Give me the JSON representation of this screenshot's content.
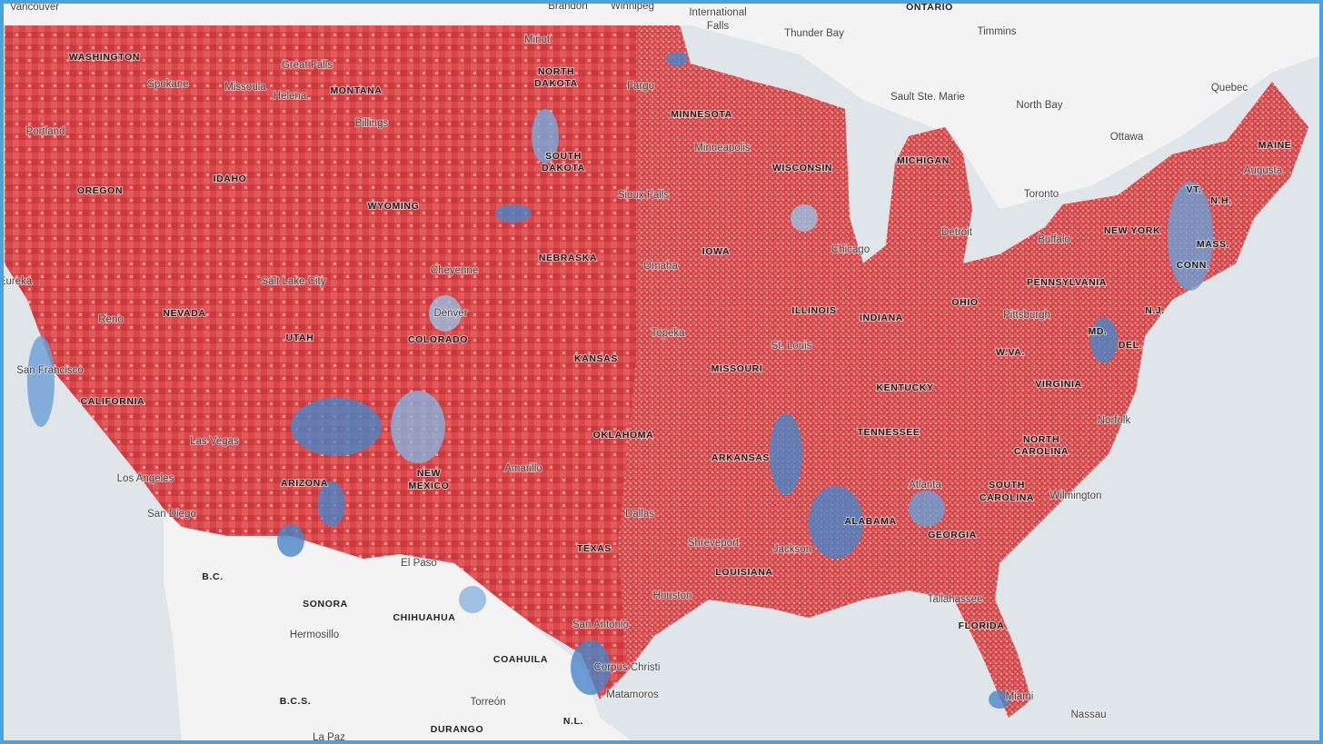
{
  "states": [
    "WASHINGTON",
    "MONTANA",
    "NORTH",
    "DAKOTA",
    "MINNESOTA",
    "SOUTH",
    "DAKOTA",
    "WISCONSIN",
    "MICHIGAN",
    "OREGON",
    "IDAHO",
    "WYOMING",
    "NEW YORK",
    "VT.",
    "N.H.",
    "MAINE",
    "MASS.",
    "CONN.",
    "IOWA",
    "NEBRASKA",
    "PENNSYLVANIA",
    "NEVADA",
    "UTAH",
    "COLORADO",
    "ILLINOIS",
    "INDIANA",
    "OHIO",
    "N.J.",
    "MD.",
    "DEL.",
    "W.VA.",
    "KANSAS",
    "MISSOURI",
    "VIRGINIA",
    "CALIFORNIA",
    "KENTUCKY",
    "TENNESSEE",
    "OKLAHOMA",
    "NORTH",
    "CAROLINA",
    "ARKANSAS",
    "ARIZONA",
    "NEW",
    "MEXICO",
    "SOUTH",
    "CAROLINA",
    "ALABAMA",
    "GEORGIA",
    "TEXAS",
    "LOUISIANA",
    "FLORIDA"
  ],
  "regions": [
    "ONTARIO",
    "B.C.",
    "SONORA",
    "CHIHUAHUA",
    "COAHUILA",
    "B.C.S.",
    "DURANGO",
    "N.L."
  ],
  "cities": [
    "Vancouver",
    "Brandon",
    "Winnipeg",
    "International",
    "Falls",
    "Thunder Bay",
    "Timmins",
    "Quebec",
    "North Bay",
    "Sault Ste. Marie",
    "Ottawa",
    "Augusta",
    "Toronto",
    "Great Falls",
    "Spokane",
    "Missoula",
    "Helena",
    "Minot",
    "Fargo",
    "Billings",
    "Portland",
    "Minneapolis",
    "Sioux Falls",
    "Chicago",
    "Detroit",
    "Buffalo",
    "Omaha",
    "Cheyenne",
    "Salt Lake City",
    "Eureka",
    "Reno",
    "Denver",
    "Pittsburgh",
    "Topeka",
    "St. Louis",
    "San Francisco",
    "Las Vegas",
    "Norfolk",
    "Amarillo",
    "Atlanta",
    "Wilmington",
    "Los Angeles",
    "Dallas",
    "San Diego",
    "Shreveport",
    "Jackson",
    "El Paso",
    "Tallahassee",
    "Houston",
    "Hermosillo",
    "San Antonio",
    "Corpus Christi",
    "Matamoros",
    "Miami",
    "Torreón",
    "Nassau",
    "La Paz"
  ]
}
